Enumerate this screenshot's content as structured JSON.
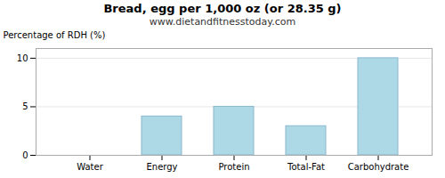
{
  "chart_data": {
    "type": "bar",
    "title": "Bread, egg per 1,000 oz (or 28.35 g)",
    "subtitle": "www.dietandfitnesstoday.com",
    "categories": [
      "Water",
      "Energy",
      "Protein",
      "Total-Fat",
      "Carbohydrate"
    ],
    "values": [
      0,
      4.0,
      5.0,
      3.0,
      10.0
    ],
    "color": "#add8e6",
    "ylabel": "Percentage of RDH (%)",
    "ylim": [
      0,
      11
    ],
    "yticks": [
      0,
      5,
      10
    ],
    "grid": true
  }
}
